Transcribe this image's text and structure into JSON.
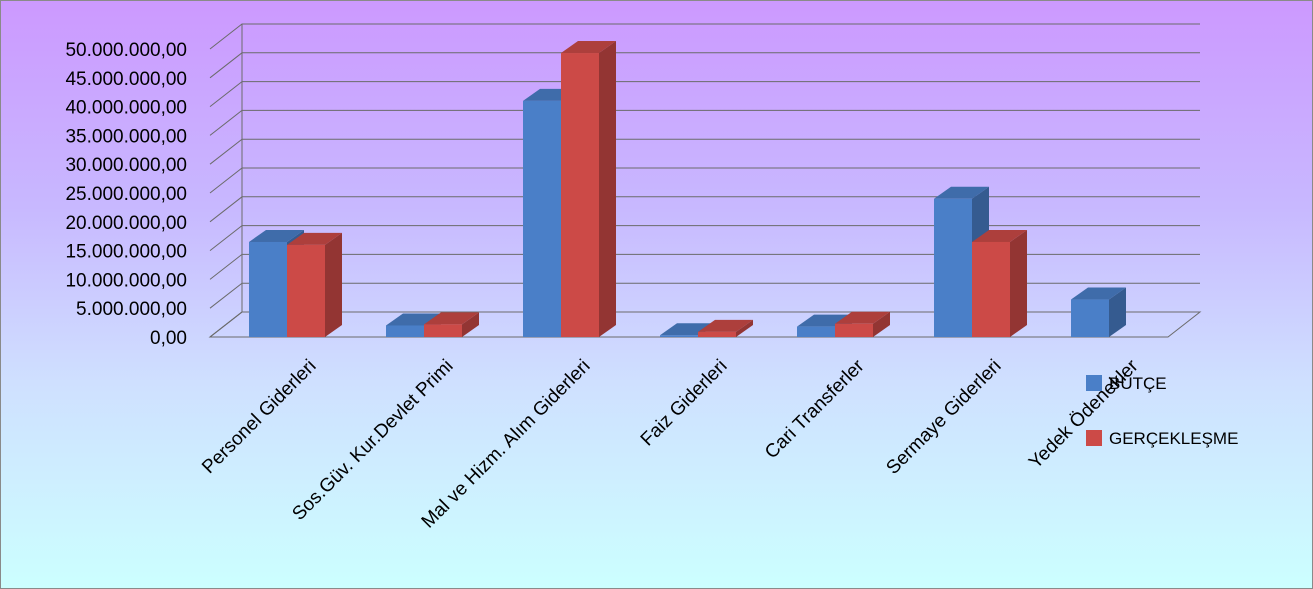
{
  "chart_data": {
    "type": "bar",
    "style": "3d-clustered-column",
    "categories": [
      "Personel Giderleri",
      "Sos.Güv. Kur.Devlet Primi",
      "Mal ve Hizm. Alım Giderleri",
      "Faiz Giderleri",
      "Cari Transferler",
      "Sermaye Giderleri",
      "Yedek Ödenekler"
    ],
    "series": [
      {
        "name": "BÜTÇE",
        "color": "#4a7fc8",
        "values": [
          16500000,
          2000000,
          41000000,
          300000,
          1800000,
          24000000,
          6500000
        ]
      },
      {
        "name": "GERÇEKLEŞME",
        "color": "#cc4a47",
        "values": [
          16000000,
          2200000,
          49300000,
          900000,
          2300000,
          16500000,
          0
        ]
      }
    ],
    "yticks": [
      "0,00",
      "5.000.000,00",
      "10.000.000,00",
      "15.000.000,00",
      "20.000.000,00",
      "25.000.000,00",
      "30.000.000,00",
      "35.000.000,00",
      "40.000.000,00",
      "45.000.000,00",
      "50.000.000,00"
    ],
    "ylim": [
      0,
      50000000
    ],
    "grid": true,
    "legend_position": "right"
  }
}
